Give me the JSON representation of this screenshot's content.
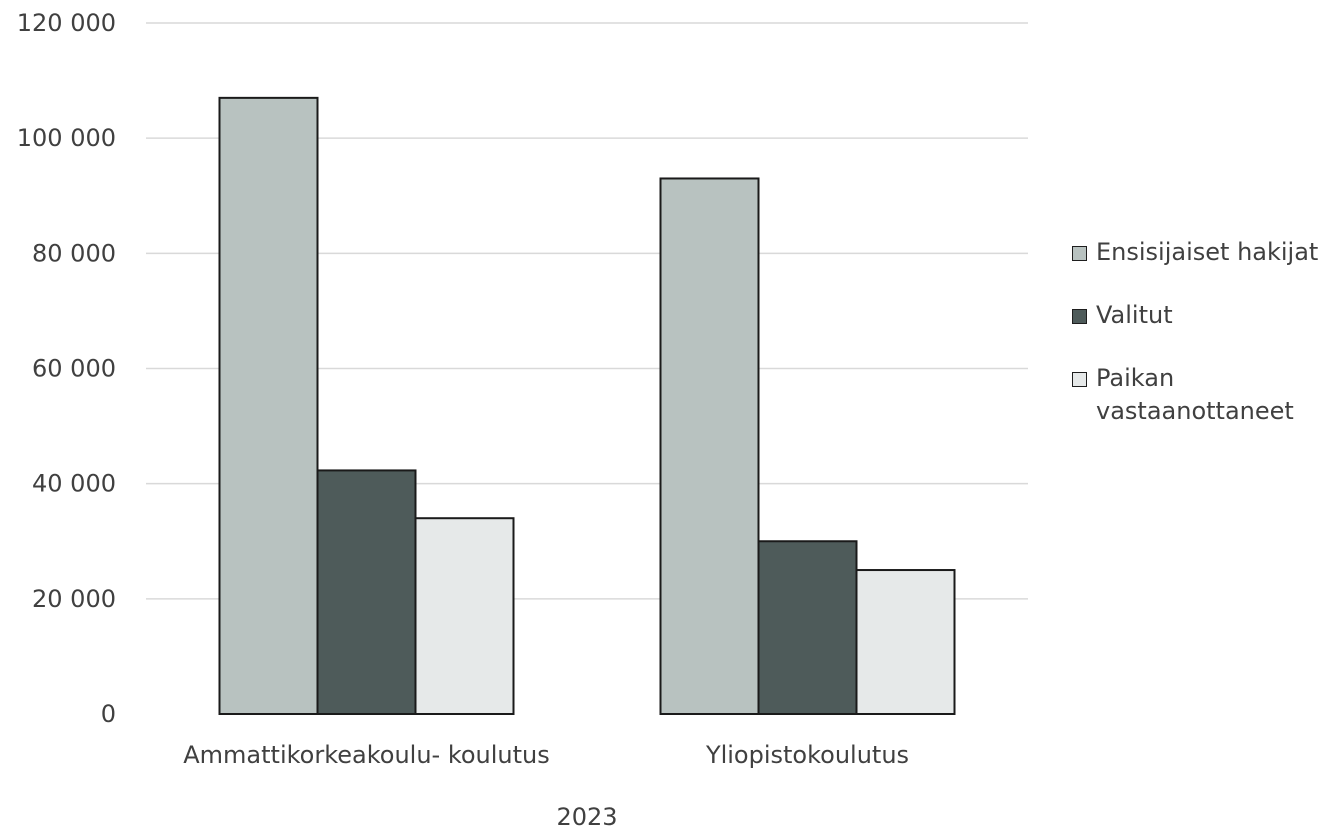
{
  "chart_data": {
    "type": "bar",
    "categories": [
      "Ammattikorkeakoulu- koulutus",
      "Yliopistokoulutus"
    ],
    "xlabel": "2023",
    "ylabel": "",
    "ylim": [
      0,
      120000
    ],
    "yticks": [
      0,
      20000,
      40000,
      60000,
      80000,
      100000,
      120000
    ],
    "ytick_labels": [
      "0",
      "20 000",
      "40 000",
      "60 000",
      "80 000",
      "100 000",
      "120 000"
    ],
    "grid": true,
    "legend_position": "right",
    "series": [
      {
        "name": "Ensisijaiset hakijat",
        "color": "#b8c2c0",
        "values": [
          107000,
          93000
        ]
      },
      {
        "name": "Valitut",
        "color": "#4e5b5a",
        "values": [
          42300,
          30000
        ]
      },
      {
        "name": "Paikan vastaanottaneet",
        "color": "#e6e9e9",
        "values": [
          34000,
          25000
        ]
      }
    ]
  }
}
